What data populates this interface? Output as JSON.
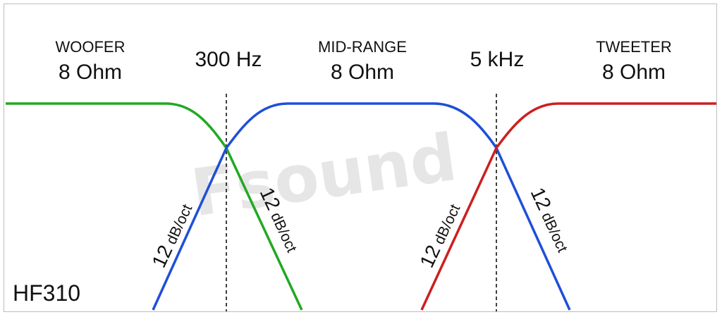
{
  "title": "",
  "watermark": "Fsound",
  "model": "HF310",
  "colors": {
    "woofer": "#22a822",
    "midrange": "#1f4fd8",
    "tweeter": "#cc1f1f",
    "divider": "#111111"
  },
  "bands": [
    {
      "name": "WOOFER",
      "impedance": "8 Ohm"
    },
    {
      "name": "MID-RANGE",
      "impedance": "8 Ohm"
    },
    {
      "name": "TWEETER",
      "impedance": "8 Ohm"
    }
  ],
  "crossovers": [
    {
      "label": "300 Hz"
    },
    {
      "label": "5 kHz"
    }
  ],
  "slopes": [
    {
      "num": "12",
      "unit": "dB/oct"
    },
    {
      "num": "12",
      "unit": "dB/oct"
    },
    {
      "num": "12",
      "unit": "dB/oct"
    },
    {
      "num": "12",
      "unit": "dB/oct"
    }
  ]
}
